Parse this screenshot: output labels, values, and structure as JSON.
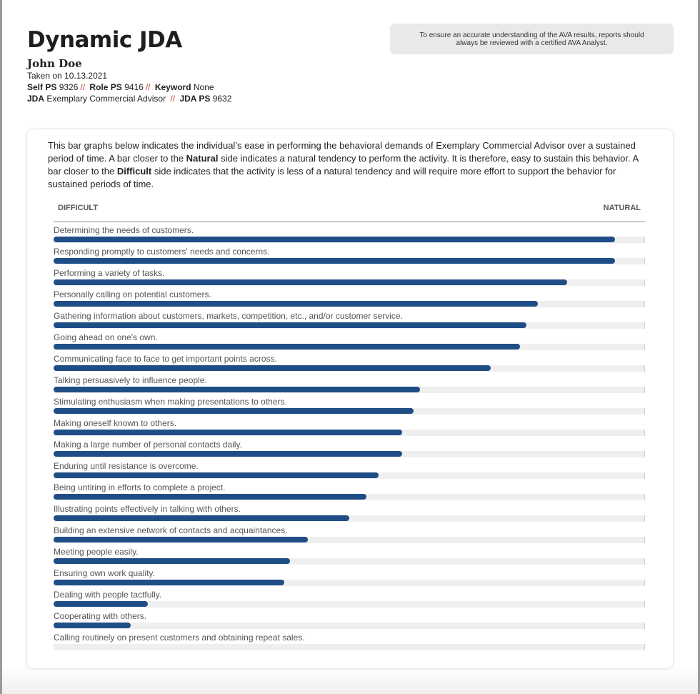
{
  "header": {
    "title": "Dynamic JDA",
    "person_name": "John Doe",
    "taken_on": "Taken on 10.13.2021",
    "self_ps_label": "Self PS",
    "self_ps_value": "9326",
    "role_ps_label": "Role PS",
    "role_ps_value": "9416",
    "keyword_label": "Keyword",
    "keyword_value": "None",
    "jda_label": "JDA",
    "jda_value": "Exemplary Commercial Advisor",
    "jda_ps_label": "JDA PS",
    "jda_ps_value": "9632",
    "separator": "//"
  },
  "notice": {
    "line1": "To ensure an accurate understanding of the AVA results, reports should",
    "line2": "always be reviewed with a certified AVA Analyst."
  },
  "intro": {
    "part1": "This bar graphs below indicates the individual’s ease in performing the behavioral demands of Exemplary Commercial Advisor over a sustained period of time. A bar closer to the ",
    "natural_bold": "Natural",
    "part2": " side indicates a natural tendency to perform the activity. It is therefore, easy to sustain this behavior. A bar closer to the ",
    "difficult_bold": "Difficult",
    "part3": " side indicates that the activity is less of a natural tendency and will require more effort to support the behavior for sustained periods of time."
  },
  "scale": {
    "left_label": "DIFFICULT",
    "right_label": "NATURAL"
  },
  "colors": {
    "bar": "#1f4e87",
    "track": "#efefef",
    "separator": "#c0392b",
    "notice_bg": "#e9e9e9"
  },
  "chart_data": {
    "type": "bar",
    "orientation": "horizontal",
    "title": "",
    "xlabel_left": "DIFFICULT",
    "xlabel_right": "NATURAL",
    "xlim": [
      0,
      100
    ],
    "categories": [
      "Determining the needs of customers.",
      "Responding promptly to customers' needs and concerns.",
      "Performing a variety of tasks.",
      "Personally calling on potential customers.",
      "Gathering information about customers, markets, competition, etc., and/or customer service.",
      "Going ahead on one's own.",
      "Communicating face to face to get important points across.",
      "Talking persuasively to influence people.",
      "Stimulating enthusiasm when making presentations to others.",
      "Making oneself known to others.",
      "Making a large number of personal contacts daily.",
      "Enduring until resistance is overcome.",
      "Being untiring in efforts to complete a project.",
      "Illustrating points effectively in talking with others.",
      "Building an extensive network of contacts and acquaintances.",
      "Meeting people easily.",
      "Ensuring own work quality.",
      "Dealing with people tactfully.",
      "Cooperating with others.",
      "Calling routinely on present customers and obtaining repeat sales."
    ],
    "values": [
      95,
      95,
      87,
      82,
      80,
      79,
      74,
      62,
      61,
      59,
      59,
      55,
      53,
      50,
      43,
      40,
      39,
      16,
      13,
      0
    ]
  }
}
